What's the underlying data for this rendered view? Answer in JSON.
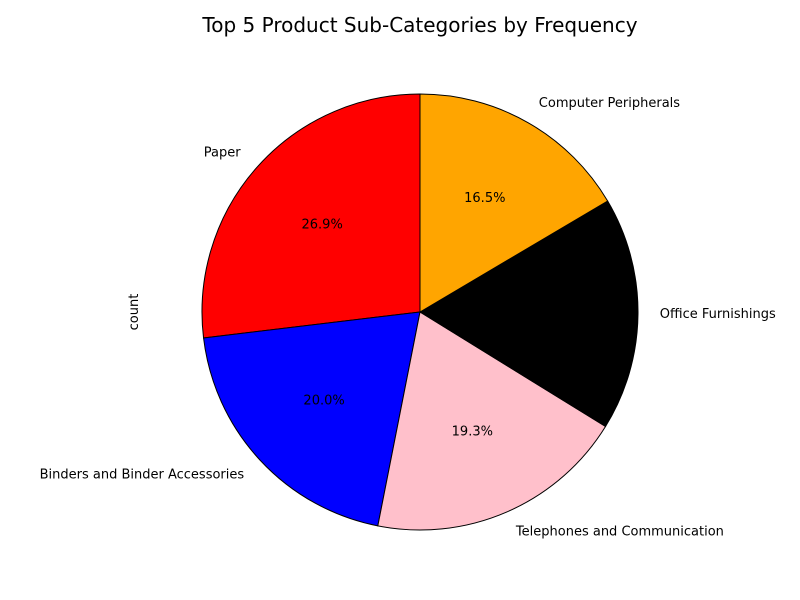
{
  "chart_data": {
    "type": "pie",
    "title": "Top 5 Product Sub-Categories by Frequency",
    "ylabel": "count",
    "categories": [
      "Paper",
      "Binders and Binder Accessories",
      "Telephones and Communication",
      "Office Furnishings",
      "Computer Peripherals"
    ],
    "values": [
      26.9,
      20.0,
      19.3,
      17.3,
      16.5
    ],
    "percent_labels": [
      "26.9%",
      "20.0%",
      "19.3%",
      "",
      "16.5%"
    ],
    "colors": [
      "#ff0000",
      "#0000ff",
      "#ffc0cb",
      "#000000",
      "#ffa500"
    ],
    "start_angle_deg": 90,
    "direction": "counterclockwise",
    "legend": "none"
  }
}
